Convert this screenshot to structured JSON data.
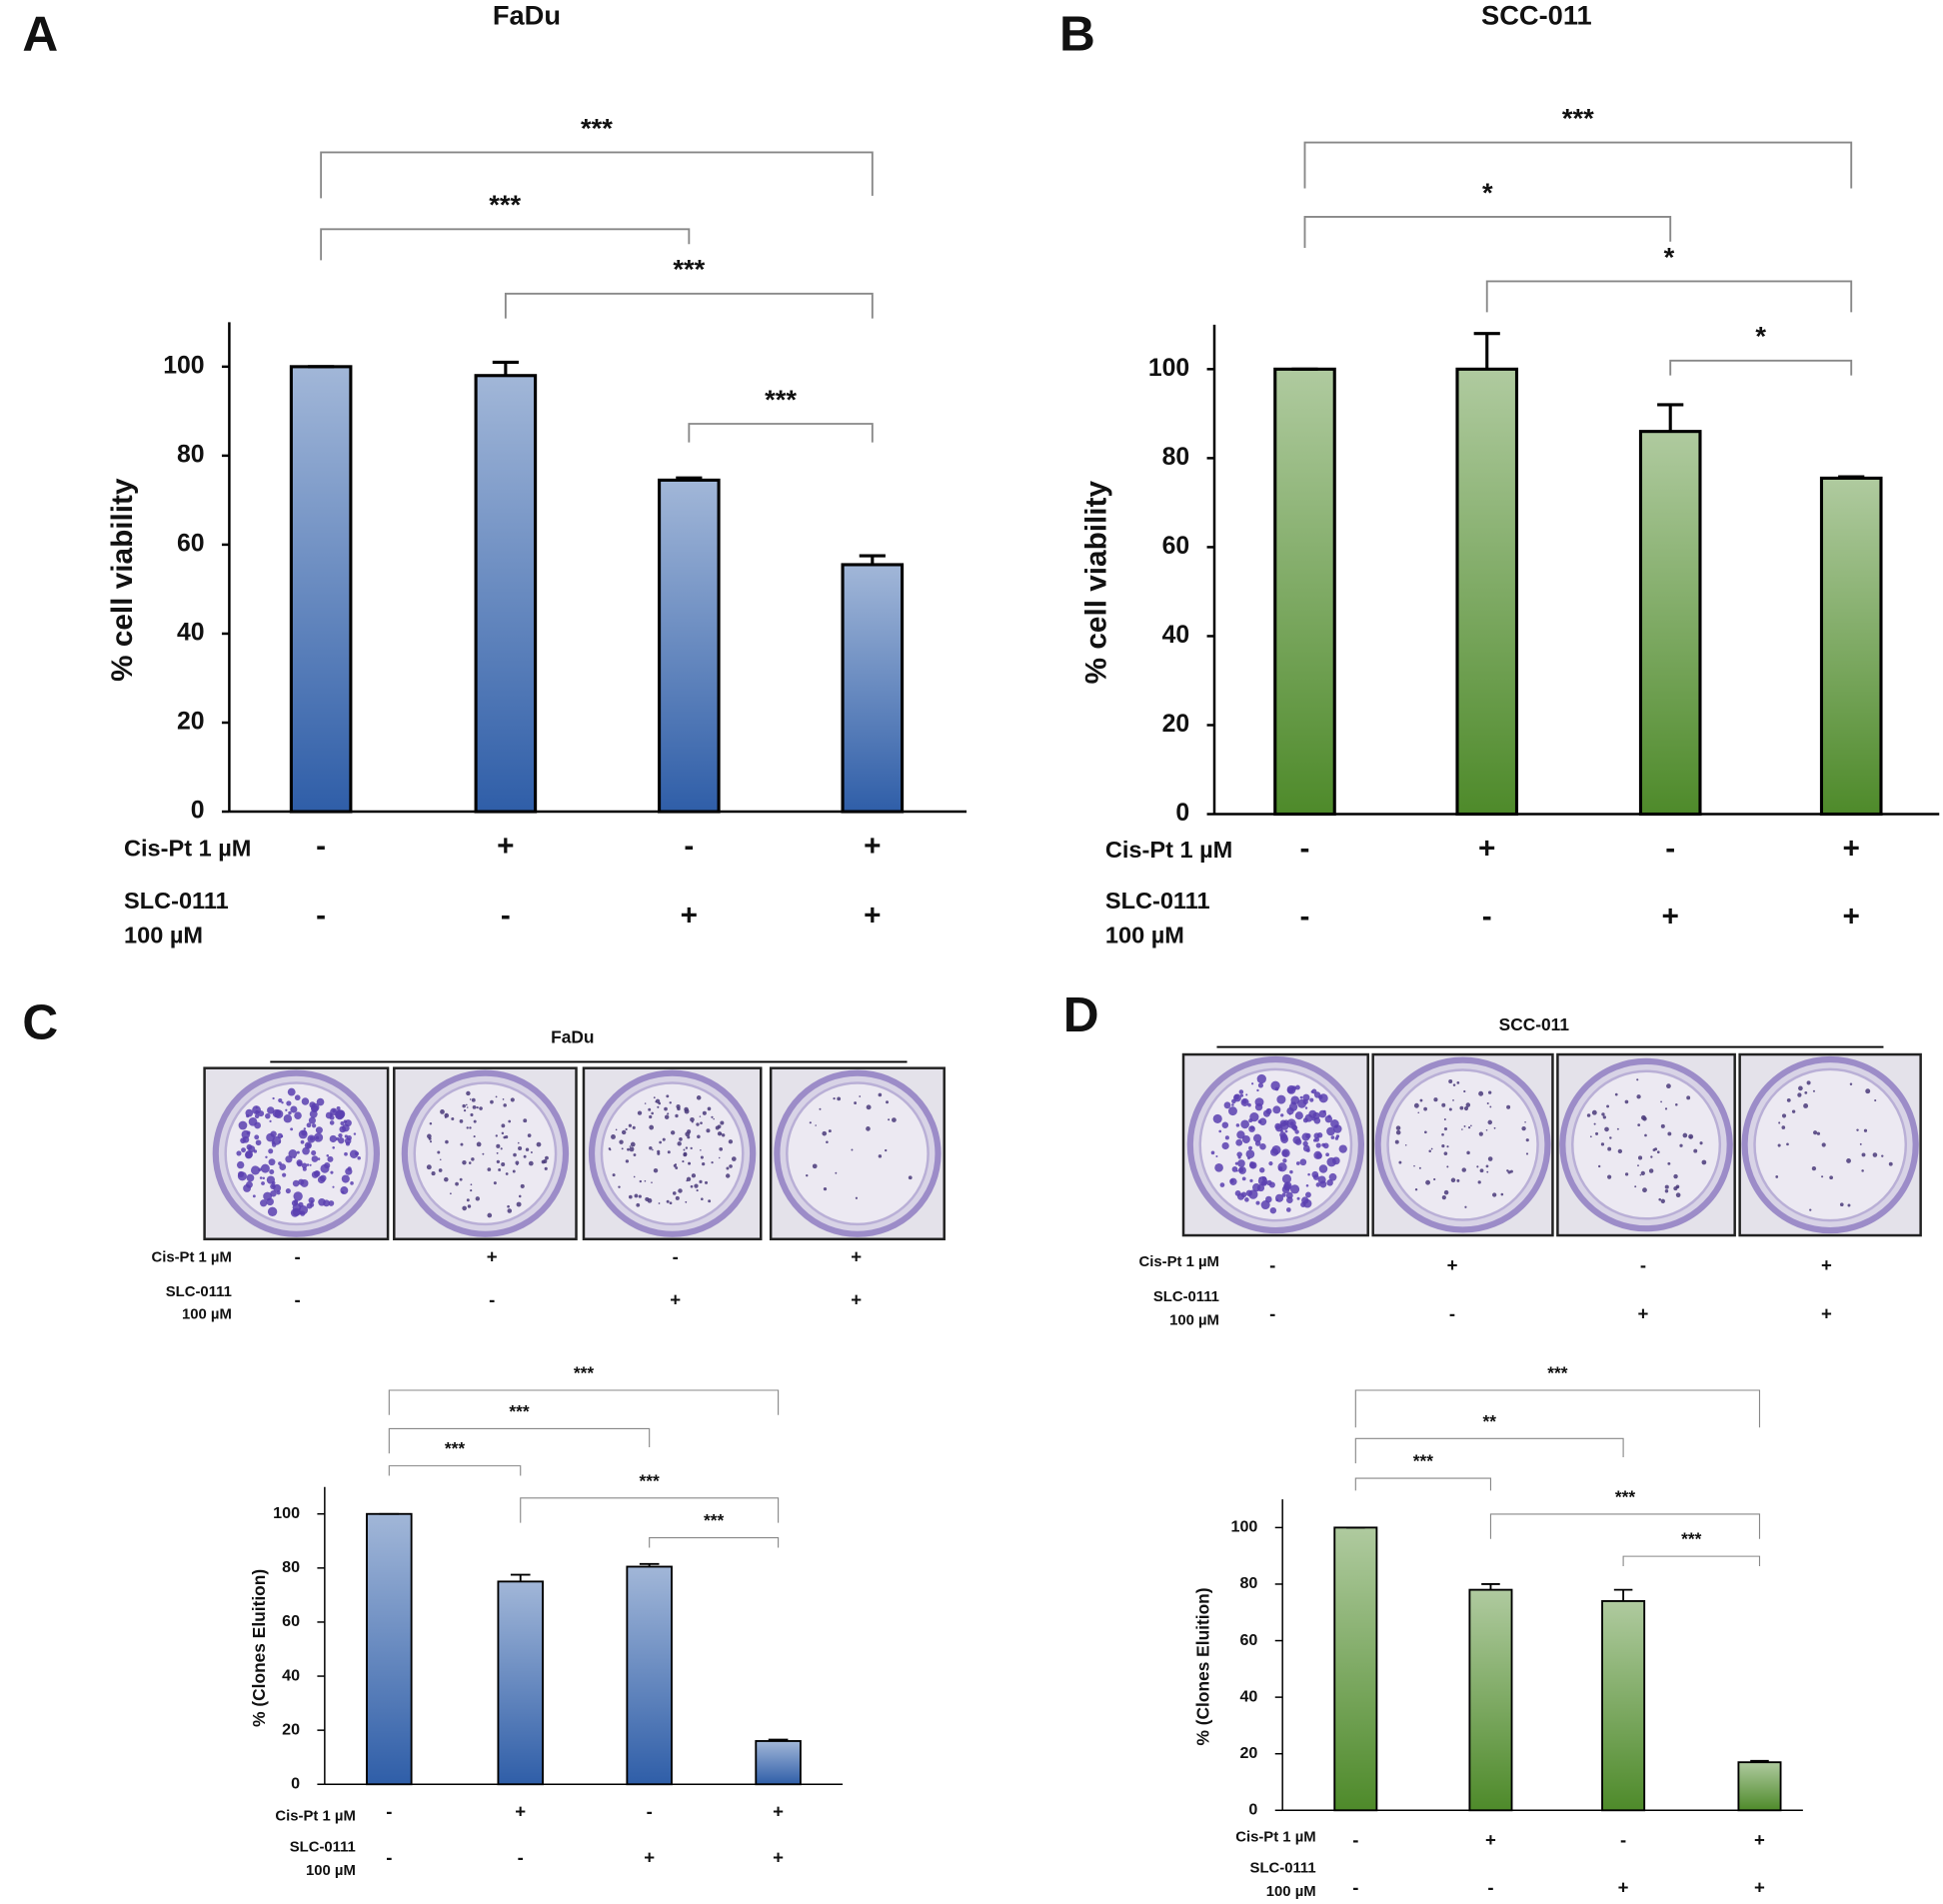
{
  "chart_data": [
    {
      "type": "bar",
      "panel": "A",
      "title": "FaDu",
      "y_label": "% cell viability",
      "categories": [
        null,
        null,
        null,
        null
      ],
      "values": [
        100,
        98,
        74.5,
        55.5
      ],
      "errors": [
        0,
        3,
        0.5,
        2
      ],
      "color": "#2f5ea8",
      "ylim": [
        0,
        110
      ],
      "yticks": [
        0,
        20,
        40,
        60,
        80,
        100
      ],
      "treatments": [
        {
          "label": [
            "Cis-Pt 1 µM"
          ],
          "values": [
            "-",
            "+",
            "-",
            "+"
          ]
        },
        {
          "label": [
            "SLC-0111",
            "100 µM"
          ],
          "values": [
            "-",
            "-",
            "+",
            "+"
          ]
        }
      ],
      "comparisons": [
        {
          "groups": [
            0,
            3
          ],
          "label": "***"
        },
        {
          "groups": [
            0,
            2
          ],
          "label": "***"
        },
        {
          "groups": [
            1,
            3
          ],
          "label": "***"
        },
        {
          "groups": [
            2,
            3
          ],
          "label": "***"
        }
      ]
    },
    {
      "type": "bar",
      "panel": "B",
      "title": "SCC-011",
      "y_label": "% cell viability",
      "categories": [
        null,
        null,
        null,
        null
      ],
      "values": [
        100,
        100,
        86,
        75.5
      ],
      "errors": [
        0,
        8,
        6,
        0.3
      ],
      "color": "#4e8a2a",
      "ylim": [
        0,
        110
      ],
      "yticks": [
        0,
        20,
        40,
        60,
        80,
        100
      ],
      "treatments": [
        {
          "label": [
            "Cis-Pt 1 µM"
          ],
          "values": [
            "-",
            "+",
            "-",
            "+"
          ]
        },
        {
          "label": [
            "SLC-0111",
            "100 µM"
          ],
          "values": [
            "-",
            "-",
            "+",
            "+"
          ]
        }
      ],
      "comparisons": [
        {
          "groups": [
            0,
            3
          ],
          "label": "***"
        },
        {
          "groups": [
            0,
            2
          ],
          "label": "*"
        },
        {
          "groups": [
            1,
            3
          ],
          "label": "*"
        },
        {
          "groups": [
            2,
            3
          ],
          "label": "*"
        }
      ]
    },
    {
      "type": "bar",
      "panel": "C",
      "title": "FaDu",
      "y_label": "% (Clones Eluition)",
      "categories": [
        null,
        null,
        null,
        null
      ],
      "values": [
        100,
        75,
        80.5,
        16
      ],
      "errors": [
        0,
        2.5,
        1,
        0.5
      ],
      "color": "#2f5ea8",
      "ylim": [
        0,
        110
      ],
      "yticks": [
        0,
        20,
        40,
        60,
        80,
        100
      ],
      "plate_treatments": [
        {
          "label": [
            "Cis-Pt 1 µM"
          ],
          "values": [
            "-",
            "+",
            "-",
            "+"
          ]
        },
        {
          "label": [
            "SLC-0111",
            "100 µM"
          ],
          "values": [
            "-",
            "-",
            "+",
            "+"
          ]
        }
      ],
      "treatments": [
        {
          "label": [
            "Cis-Pt 1 µM"
          ],
          "values": [
            "-",
            "+",
            "-",
            "+"
          ]
        },
        {
          "label": [
            "SLC-0111",
            "100 µM"
          ],
          "values": [
            "-",
            "-",
            "+",
            "+"
          ]
        }
      ],
      "comparisons": [
        {
          "groups": [
            0,
            3
          ],
          "label": "***"
        },
        {
          "groups": [
            0,
            2
          ],
          "label": "***"
        },
        {
          "groups": [
            0,
            1
          ],
          "label": "***"
        },
        {
          "groups": [
            1,
            3
          ],
          "label": "***"
        },
        {
          "groups": [
            2,
            3
          ],
          "label": "***"
        }
      ]
    },
    {
      "type": "bar",
      "panel": "D",
      "title": "SCC-011",
      "y_label": "% (Clones Eluition)",
      "categories": [
        null,
        null,
        null,
        null
      ],
      "values": [
        100,
        78,
        74,
        17
      ],
      "errors": [
        0,
        2,
        4,
        0.5
      ],
      "color": "#4e8a2a",
      "ylim": [
        0,
        110
      ],
      "yticks": [
        0,
        20,
        40,
        60,
        80,
        100
      ],
      "plate_treatments": [
        {
          "label": [
            "Cis-Pt 1 µM"
          ],
          "values": [
            "-",
            "+",
            "-",
            "+"
          ]
        },
        {
          "label": [
            "SLC-0111",
            "100 µM"
          ],
          "values": [
            "-",
            "-",
            "+",
            "+"
          ]
        }
      ],
      "treatments": [
        {
          "label": [
            "Cis-Pt 1 µM"
          ],
          "values": [
            "-",
            "+",
            "-",
            "+"
          ]
        },
        {
          "label": [
            "SLC-0111",
            "100 µM"
          ],
          "values": [
            "-",
            "-",
            "+",
            "+"
          ]
        }
      ],
      "comparisons": [
        {
          "groups": [
            0,
            3
          ],
          "label": "***"
        },
        {
          "groups": [
            0,
            2
          ],
          "label": "**"
        },
        {
          "groups": [
            0,
            1
          ],
          "label": "***"
        },
        {
          "groups": [
            1,
            3
          ],
          "label": "***"
        },
        {
          "groups": [
            2,
            3
          ],
          "label": "***"
        }
      ]
    }
  ]
}
